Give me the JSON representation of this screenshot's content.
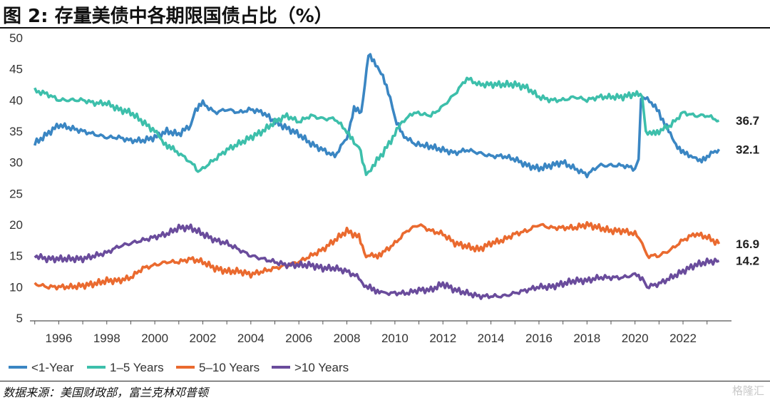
{
  "header": {
    "figure_title": "图 2:  存量美债中各期限国债占比（%）"
  },
  "footer": {
    "source": "数据来源：美国财政部，富兰克林邓普顿",
    "watermark": "格隆汇"
  },
  "chart_data": {
    "type": "line",
    "xlim": [
      1994.8,
      2023.9
    ],
    "ylim": [
      5,
      50
    ],
    "yticks": [
      5,
      10,
      15,
      20,
      25,
      30,
      35,
      40,
      45,
      50
    ],
    "xticks": [
      "1996",
      "1998",
      "2000",
      "2002",
      "2004",
      "2006",
      "2008",
      "2010",
      "2012",
      "2014",
      "2016",
      "2018",
      "2020",
      "2022"
    ],
    "legend_position": "bottom-left",
    "series": [
      {
        "name": "<1-Year",
        "color": "#3a86c3",
        "end_label": "32.1",
        "points": [
          [
            1995.0,
            33.0
          ],
          [
            1995.5,
            34.5
          ],
          [
            1996.0,
            36.0
          ],
          [
            1996.5,
            35.5
          ],
          [
            1997.0,
            35.0
          ],
          [
            1997.5,
            34.5
          ],
          [
            1998.0,
            34.0
          ],
          [
            1998.5,
            34.0
          ],
          [
            1999.0,
            33.5
          ],
          [
            1999.5,
            33.5
          ],
          [
            2000.0,
            34.0
          ],
          [
            2000.5,
            35.0
          ],
          [
            2001.0,
            34.5
          ],
          [
            2001.5,
            36.0
          ],
          [
            2001.7,
            38.5
          ],
          [
            2002.0,
            39.5
          ],
          [
            2002.5,
            38.0
          ],
          [
            2003.0,
            38.5
          ],
          [
            2003.5,
            38.0
          ],
          [
            2004.0,
            38.5
          ],
          [
            2004.5,
            38.0
          ],
          [
            2005.0,
            36.5
          ],
          [
            2005.5,
            35.5
          ],
          [
            2006.0,
            34.5
          ],
          [
            2006.5,
            33.0
          ],
          [
            2007.0,
            32.0
          ],
          [
            2007.5,
            31.0
          ],
          [
            2008.0,
            34.0
          ],
          [
            2008.3,
            38.5
          ],
          [
            2008.6,
            38.0
          ],
          [
            2008.9,
            47.5
          ],
          [
            2009.2,
            45.5
          ],
          [
            2009.5,
            44.0
          ],
          [
            2009.8,
            40.5
          ],
          [
            2010.0,
            37.0
          ],
          [
            2010.3,
            34.5
          ],
          [
            2010.8,
            33.0
          ],
          [
            2011.5,
            32.5
          ],
          [
            2012.0,
            32.0
          ],
          [
            2012.5,
            31.5
          ],
          [
            2013.0,
            32.0
          ],
          [
            2013.5,
            31.5
          ],
          [
            2014.0,
            31.0
          ],
          [
            2014.5,
            31.0
          ],
          [
            2015.0,
            30.5
          ],
          [
            2015.5,
            29.5
          ],
          [
            2016.0,
            29.0
          ],
          [
            2016.5,
            29.5
          ],
          [
            2017.0,
            30.0
          ],
          [
            2017.5,
            29.0
          ],
          [
            2018.0,
            28.0
          ],
          [
            2018.5,
            29.5
          ],
          [
            2019.0,
            29.5
          ],
          [
            2019.5,
            29.5
          ],
          [
            2020.0,
            29.0
          ],
          [
            2020.15,
            30.5
          ],
          [
            2020.25,
            40.5
          ],
          [
            2020.6,
            40.0
          ],
          [
            2021.0,
            38.0
          ],
          [
            2021.4,
            35.0
          ],
          [
            2021.7,
            33.0
          ],
          [
            2022.0,
            31.5
          ],
          [
            2022.4,
            31.0
          ],
          [
            2022.7,
            30.0
          ],
          [
            2023.0,
            31.0
          ],
          [
            2023.5,
            32.1
          ]
        ]
      },
      {
        "name": "1–5 Years",
        "color": "#3dbfab",
        "end_label": "36.7",
        "points": [
          [
            1995.0,
            41.5
          ],
          [
            1995.5,
            41.0
          ],
          [
            1996.0,
            40.0
          ],
          [
            1996.5,
            40.0
          ],
          [
            1997.0,
            40.0
          ],
          [
            1997.5,
            39.5
          ],
          [
            1998.0,
            39.5
          ],
          [
            1998.5,
            38.5
          ],
          [
            1999.0,
            38.0
          ],
          [
            1999.5,
            36.5
          ],
          [
            2000.0,
            35.0
          ],
          [
            2000.3,
            33.5
          ],
          [
            2000.6,
            32.5
          ],
          [
            2001.0,
            31.5
          ],
          [
            2001.5,
            30.0
          ],
          [
            2001.8,
            28.5
          ],
          [
            2002.0,
            29.0
          ],
          [
            2002.5,
            30.5
          ],
          [
            2003.0,
            32.0
          ],
          [
            2003.5,
            33.0
          ],
          [
            2004.0,
            34.0
          ],
          [
            2004.5,
            35.0
          ],
          [
            2005.0,
            36.5
          ],
          [
            2005.5,
            37.5
          ],
          [
            2006.0,
            36.5
          ],
          [
            2006.5,
            37.5
          ],
          [
            2007.0,
            37.0
          ],
          [
            2007.5,
            37.0
          ],
          [
            2008.0,
            35.0
          ],
          [
            2008.3,
            33.0
          ],
          [
            2008.5,
            32.5
          ],
          [
            2008.8,
            28.0
          ],
          [
            2009.0,
            29.0
          ],
          [
            2009.5,
            31.5
          ],
          [
            2010.0,
            34.5
          ],
          [
            2010.3,
            36.5
          ],
          [
            2010.8,
            38.0
          ],
          [
            2011.5,
            37.5
          ],
          [
            2012.0,
            39.0
          ],
          [
            2012.5,
            41.0
          ],
          [
            2013.0,
            43.5
          ],
          [
            2013.5,
            42.5
          ],
          [
            2014.0,
            42.5
          ],
          [
            2014.5,
            42.5
          ],
          [
            2015.0,
            42.5
          ],
          [
            2015.5,
            42.0
          ],
          [
            2016.0,
            40.5
          ],
          [
            2016.5,
            40.0
          ],
          [
            2017.0,
            40.0
          ],
          [
            2017.5,
            40.5
          ],
          [
            2018.0,
            40.0
          ],
          [
            2018.5,
            40.5
          ],
          [
            2019.0,
            40.5
          ],
          [
            2019.5,
            40.5
          ],
          [
            2020.0,
            41.0
          ],
          [
            2020.3,
            40.5
          ],
          [
            2020.45,
            35.0
          ],
          [
            2020.7,
            34.5
          ],
          [
            2021.0,
            35.0
          ],
          [
            2021.5,
            36.0
          ],
          [
            2022.0,
            38.0
          ],
          [
            2022.5,
            37.5
          ],
          [
            2023.0,
            37.5
          ],
          [
            2023.5,
            36.7
          ]
        ]
      },
      {
        "name": "5–10 Years",
        "color": "#ea6a2f",
        "end_label": "16.9",
        "points": [
          [
            1995.0,
            10.5
          ],
          [
            1995.5,
            10.0
          ],
          [
            1996.0,
            10.0
          ],
          [
            1996.5,
            10.0
          ],
          [
            1997.0,
            10.2
          ],
          [
            1997.5,
            10.5
          ],
          [
            1998.0,
            11.0
          ],
          [
            1998.5,
            11.0
          ],
          [
            1999.0,
            11.5
          ],
          [
            1999.5,
            13.0
          ],
          [
            2000.0,
            13.5
          ],
          [
            2000.5,
            14.0
          ],
          [
            2001.0,
            14.0
          ],
          [
            2001.5,
            14.5
          ],
          [
            2002.0,
            14.0
          ],
          [
            2002.5,
            13.0
          ],
          [
            2003.0,
            12.5
          ],
          [
            2003.5,
            12.5
          ],
          [
            2004.0,
            12.0
          ],
          [
            2004.5,
            12.5
          ],
          [
            2005.0,
            13.0
          ],
          [
            2005.5,
            13.5
          ],
          [
            2006.0,
            14.0
          ],
          [
            2006.5,
            15.0
          ],
          [
            2007.0,
            16.0
          ],
          [
            2007.5,
            17.5
          ],
          [
            2008.0,
            19.0
          ],
          [
            2008.5,
            18.0
          ],
          [
            2008.8,
            15.0
          ],
          [
            2009.2,
            15.0
          ],
          [
            2009.5,
            15.5
          ],
          [
            2010.0,
            17.0
          ],
          [
            2010.5,
            19.0
          ],
          [
            2011.0,
            20.0
          ],
          [
            2011.5,
            19.0
          ],
          [
            2012.0,
            18.5
          ],
          [
            2012.5,
            17.0
          ],
          [
            2013.0,
            16.5
          ],
          [
            2013.5,
            16.0
          ],
          [
            2014.0,
            17.0
          ],
          [
            2014.5,
            17.5
          ],
          [
            2015.0,
            18.5
          ],
          [
            2015.5,
            19.0
          ],
          [
            2016.0,
            20.0
          ],
          [
            2016.5,
            19.5
          ],
          [
            2017.0,
            19.5
          ],
          [
            2017.5,
            19.5
          ],
          [
            2018.0,
            20.0
          ],
          [
            2018.5,
            19.5
          ],
          [
            2019.0,
            19.0
          ],
          [
            2019.5,
            19.0
          ],
          [
            2020.0,
            18.5
          ],
          [
            2020.3,
            17.0
          ],
          [
            2020.5,
            15.0
          ],
          [
            2021.0,
            15.0
          ],
          [
            2021.5,
            16.0
          ],
          [
            2022.0,
            17.5
          ],
          [
            2022.5,
            18.5
          ],
          [
            2023.0,
            18.0
          ],
          [
            2023.5,
            16.9
          ]
        ]
      },
      {
        "name": ">10 Years",
        "color": "#6a4c9c",
        "end_label": "14.2",
        "points": [
          [
            1995.0,
            15.0
          ],
          [
            1995.5,
            14.5
          ],
          [
            1996.0,
            14.5
          ],
          [
            1996.5,
            14.5
          ],
          [
            1997.0,
            14.5
          ],
          [
            1997.5,
            15.0
          ],
          [
            1998.0,
            15.5
          ],
          [
            1998.5,
            16.5
          ],
          [
            1999.0,
            17.0
          ],
          [
            1999.5,
            17.5
          ],
          [
            2000.0,
            18.0
          ],
          [
            2000.5,
            18.5
          ],
          [
            2001.0,
            19.5
          ],
          [
            2001.5,
            19.5
          ],
          [
            2002.0,
            18.5
          ],
          [
            2002.5,
            17.5
          ],
          [
            2003.0,
            17.0
          ],
          [
            2003.5,
            16.0
          ],
          [
            2004.0,
            15.0
          ],
          [
            2004.5,
            14.5
          ],
          [
            2005.0,
            14.0
          ],
          [
            2005.5,
            13.5
          ],
          [
            2006.0,
            13.5
          ],
          [
            2006.5,
            13.5
          ],
          [
            2007.0,
            13.0
          ],
          [
            2007.5,
            13.0
          ],
          [
            2008.0,
            12.5
          ],
          [
            2008.5,
            11.5
          ],
          [
            2008.8,
            10.0
          ],
          [
            2009.2,
            9.5
          ],
          [
            2009.5,
            9.0
          ],
          [
            2010.0,
            9.0
          ],
          [
            2010.5,
            9.0
          ],
          [
            2011.0,
            9.5
          ],
          [
            2011.5,
            9.5
          ],
          [
            2012.0,
            10.5
          ],
          [
            2012.5,
            9.5
          ],
          [
            2013.0,
            9.0
          ],
          [
            2013.5,
            8.5
          ],
          [
            2014.0,
            8.5
          ],
          [
            2014.5,
            8.5
          ],
          [
            2015.0,
            9.0
          ],
          [
            2015.5,
            9.5
          ],
          [
            2016.0,
            10.0
          ],
          [
            2016.5,
            10.0
          ],
          [
            2017.0,
            10.5
          ],
          [
            2017.5,
            11.0
          ],
          [
            2018.0,
            11.0
          ],
          [
            2018.5,
            11.5
          ],
          [
            2019.0,
            11.5
          ],
          [
            2019.5,
            11.5
          ],
          [
            2020.0,
            12.0
          ],
          [
            2020.3,
            11.5
          ],
          [
            2020.5,
            10.0
          ],
          [
            2021.0,
            10.5
          ],
          [
            2021.5,
            11.5
          ],
          [
            2022.0,
            12.5
          ],
          [
            2022.5,
            13.5
          ],
          [
            2023.0,
            14.0
          ],
          [
            2023.5,
            14.2
          ]
        ]
      }
    ]
  }
}
